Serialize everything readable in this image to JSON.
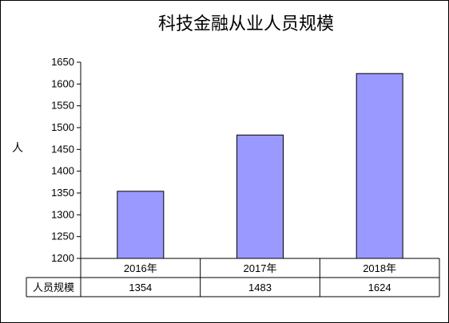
{
  "chart_data": {
    "type": "bar",
    "title": "科技金融从业人员规模",
    "xlabel": "",
    "ylabel": "人",
    "categories": [
      "2016年",
      "2017年",
      "2018年"
    ],
    "series": [
      {
        "name": "人员规模",
        "values": [
          1354,
          1483,
          1624
        ]
      }
    ],
    "value_labels": [
      "1354",
      "1483",
      "1624"
    ],
    "ylim": [
      1200,
      1650
    ],
    "yticks": [
      1200,
      1250,
      1300,
      1350,
      1400,
      1450,
      1500,
      1550,
      1600,
      1650
    ],
    "grid": false,
    "legend": "none",
    "data_table": true,
    "bar_color": "#9999ff",
    "bar_border": "#000000"
  }
}
